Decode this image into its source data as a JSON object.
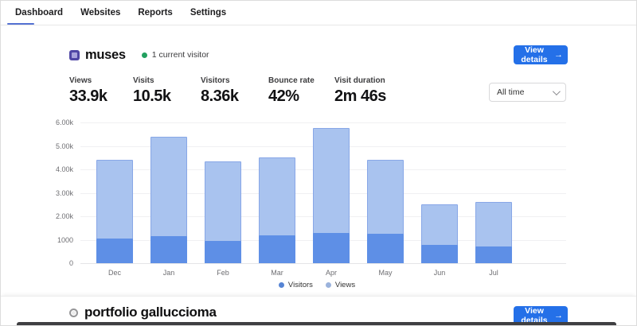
{
  "nav": {
    "tabs": [
      {
        "label": "Dashboard",
        "active": true
      },
      {
        "label": "Websites",
        "active": false
      },
      {
        "label": "Reports",
        "active": false
      },
      {
        "label": "Settings",
        "active": false
      }
    ]
  },
  "sites": [
    {
      "name": "muses",
      "live_status": "1 current visitor",
      "view_details_label": "View details",
      "view_details_arrow": "→",
      "time_range": {
        "selected": "All time"
      },
      "stats": [
        {
          "label": "Views",
          "value": "33.9k"
        },
        {
          "label": "Visits",
          "value": "10.5k"
        },
        {
          "label": "Visitors",
          "value": "8.36k"
        },
        {
          "label": "Bounce rate",
          "value": "42%"
        },
        {
          "label": "Visit duration",
          "value": "2m 46s"
        }
      ]
    },
    {
      "name": "portfolio galluccioma",
      "view_details_label": "View details",
      "view_details_arrow": "→"
    }
  ],
  "chart_data": {
    "type": "bar",
    "categories": [
      "Dec",
      "Jan",
      "Feb",
      "Mar",
      "Apr",
      "May",
      "Jun",
      "Jul"
    ],
    "series": [
      {
        "name": "Visitors",
        "color": "#5e8fe6",
        "values": [
          1050,
          1150,
          950,
          1200,
          1300,
          1250,
          780,
          700
        ]
      },
      {
        "name": "Views",
        "color": "#a9c3ef",
        "values": [
          4400,
          5400,
          4350,
          4500,
          5750,
          4400,
          2500,
          2600
        ]
      }
    ],
    "ylim": [
      0,
      6000
    ],
    "yticks": [
      {
        "value": 6000,
        "label": "6.00k"
      },
      {
        "value": 5000,
        "label": "5.00k"
      },
      {
        "value": 4000,
        "label": "4.00k"
      },
      {
        "value": 3000,
        "label": "3.00k"
      },
      {
        "value": 2000,
        "label": "2.00k"
      },
      {
        "value": 1000,
        "label": "1000"
      },
      {
        "value": 0,
        "label": "0"
      }
    ],
    "legend": [
      "Visitors",
      "Views"
    ],
    "legend_position": "bottom",
    "grid": true
  },
  "colors": {
    "accent": "#2470e8",
    "visitors_bar": "#5e8fe6",
    "views_bar": "#a9c3ef",
    "live_green": "#22a05f",
    "active_tab_underline": "#5472d3"
  }
}
